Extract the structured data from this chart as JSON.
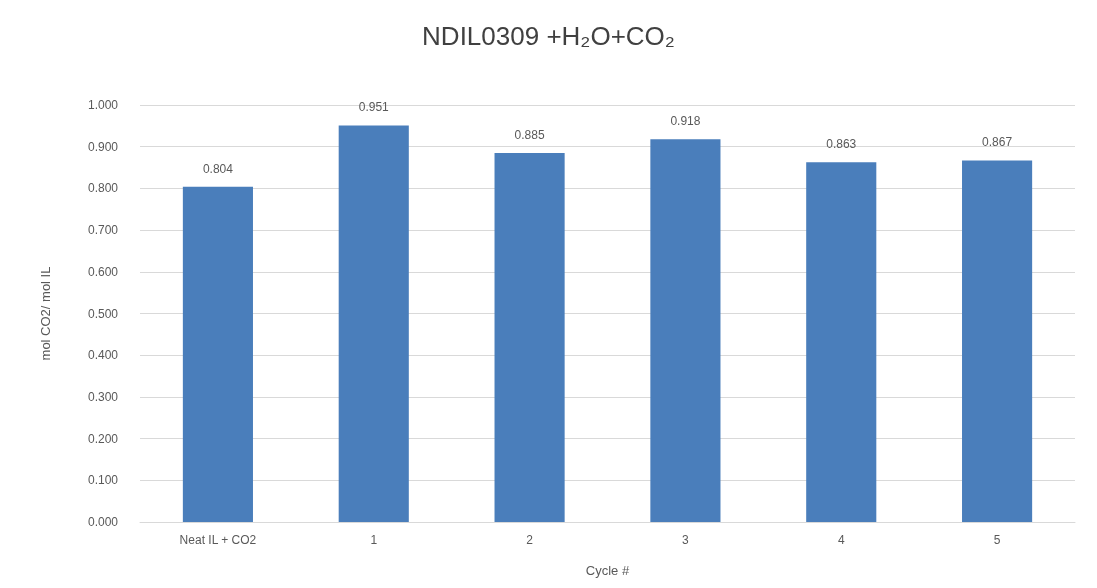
{
  "chart_data": {
    "type": "bar",
    "title": "NDIL0309 +H₂O+CO₂",
    "xlabel": "Cycle #",
    "ylabel": "mol CO2/ mol IL",
    "categories": [
      "Neat IL + CO2",
      "1",
      "2",
      "3",
      "4",
      "5"
    ],
    "values": [
      0.804,
      0.951,
      0.885,
      0.918,
      0.863,
      0.867
    ],
    "color": "#4a7ebb",
    "ylim": [
      0,
      1
    ],
    "yticks": [
      {
        "value": 0,
        "label": "0.000"
      },
      {
        "value": 0.1,
        "label": "0.100"
      },
      {
        "value": 0.2,
        "label": "0.200"
      },
      {
        "value": 0.3,
        "label": "0.300"
      },
      {
        "value": 0.4,
        "label": "0.400"
      },
      {
        "value": 0.5,
        "label": "0.500"
      },
      {
        "value": 0.6,
        "label": "0.600"
      },
      {
        "value": 0.7,
        "label": "0.700"
      },
      {
        "value": 0.8,
        "label": "0.800"
      },
      {
        "value": 0.9,
        "label": "0.900"
      },
      {
        "value": 1,
        "label": "1.000"
      }
    ],
    "grid": "y",
    "data_labels": true
  }
}
